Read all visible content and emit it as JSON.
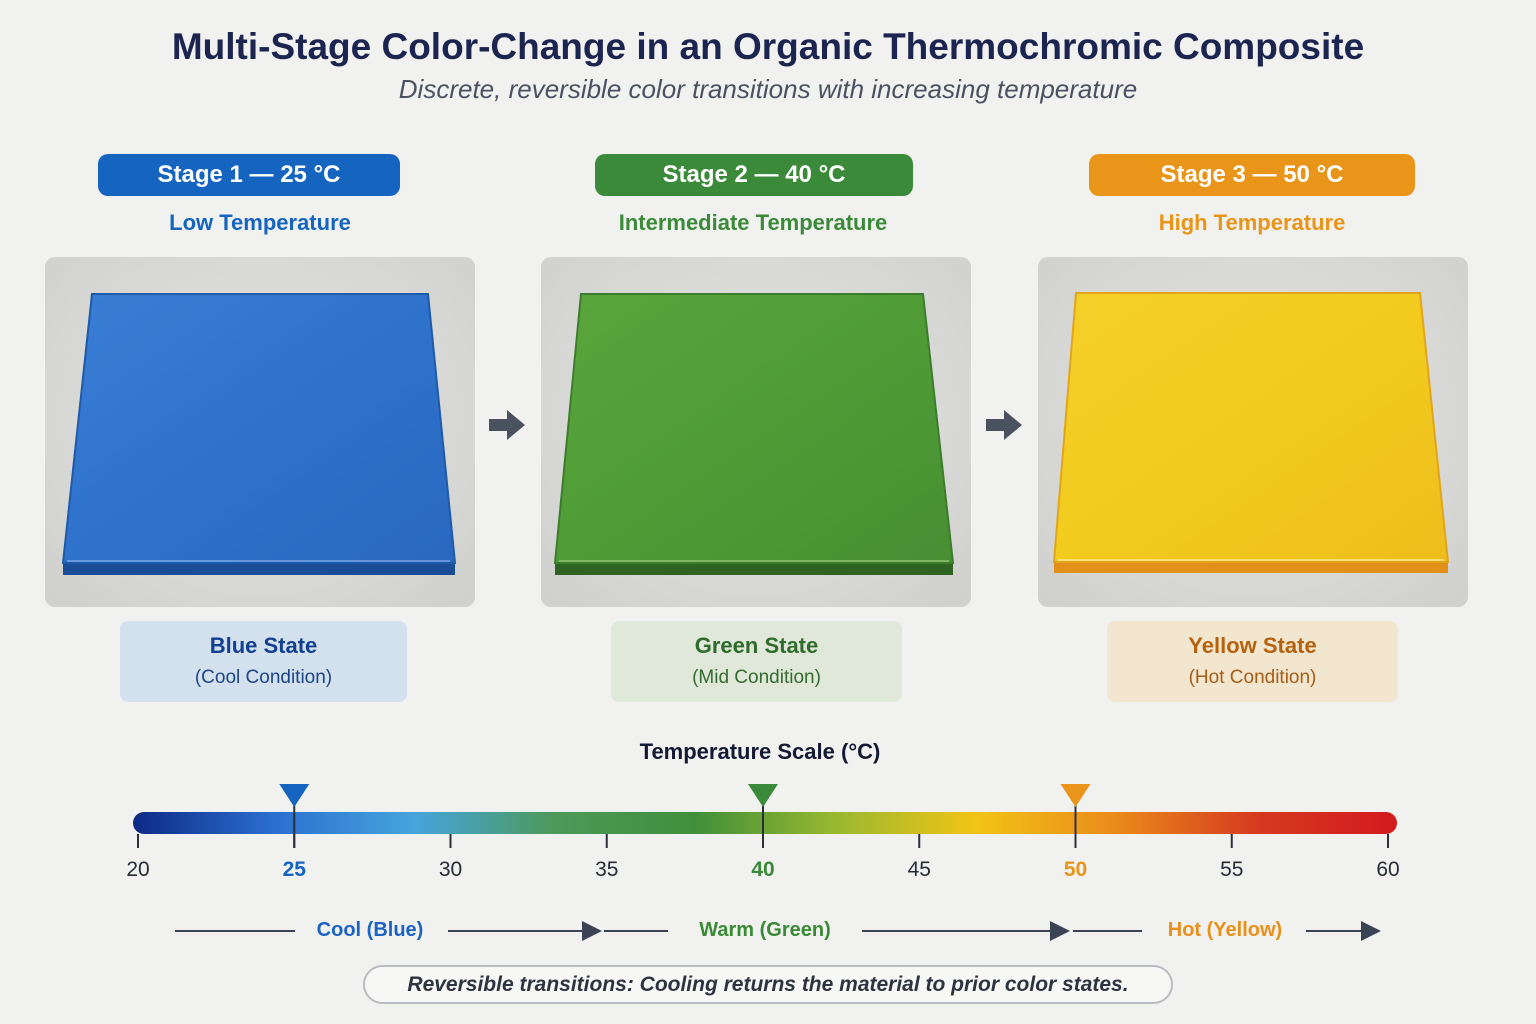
{
  "header": {
    "title": "Multi-Stage Color-Change in an Organic Thermochromic Composite",
    "subtitle": "Discrete, reversible color transitions with increasing temperature"
  },
  "stages": [
    {
      "label": "Stage 1 — 25 °C",
      "description": "Low Temperature",
      "state_name": "Blue State",
      "condition": "(Cool Condition)",
      "temperature": 25,
      "color": "#1564c0",
      "sample_color": "#2f74d0",
      "box_bg": "#d3e1ef"
    },
    {
      "label": "Stage 2 — 40 °C",
      "description": "Intermediate Temperature",
      "state_name": "Green State",
      "condition": "(Mid Condition)",
      "temperature": 40,
      "color": "#3b8a3a",
      "sample_color": "#4f9c36",
      "box_bg": "#dfe8d9"
    },
    {
      "label": "Stage 3 — 50 °C",
      "description": "High Temperature",
      "state_name": "Yellow State",
      "condition": "(Hot Condition)",
      "temperature": 50,
      "color": "#e8951a",
      "sample_color": "#f2cb1e",
      "box_bg": "#f3e6cf"
    }
  ],
  "scale": {
    "title": "Temperature Scale (°C)",
    "min": 20,
    "max": 60,
    "ticks": [
      "20",
      "25",
      "30",
      "35",
      "40",
      "45",
      "50",
      "55",
      "60"
    ],
    "gradient": [
      "#0d2a85",
      "#2b6fcf",
      "#46a4dc",
      "#4c9a5a",
      "#3f8f3a",
      "#99b82f",
      "#f2c416",
      "#ea8a1a",
      "#d63a1f",
      "#d3191f"
    ]
  },
  "ranges": [
    {
      "label": "Cool (Blue)",
      "color": "#1b63c2"
    },
    {
      "label": "Warm (Green)",
      "color": "#3a8a35"
    },
    {
      "label": "Hot (Yellow)",
      "color": "#e8901a"
    }
  ],
  "note": "Reversible transitions: Cooling returns the material to prior color states.",
  "icons": {
    "transition_arrow": "right-arrow-icon",
    "marker": "down-triangle-marker"
  }
}
